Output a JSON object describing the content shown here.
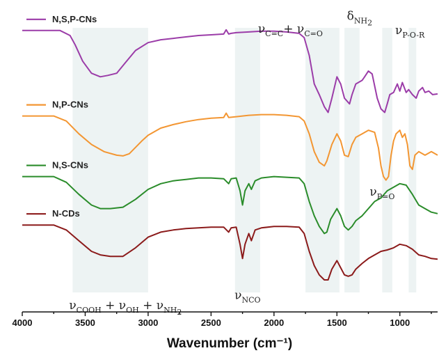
{
  "chart_data": {
    "type": "line",
    "title": "",
    "xlabel": "Wavenumber (cm⁻¹)",
    "ylabel": "",
    "xlim": [
      4000,
      700
    ],
    "x_reversed": true,
    "x_ticks": [
      4000,
      3500,
      3000,
      2500,
      2000,
      1500,
      1000
    ],
    "tick_labels": [
      "4000",
      "3500",
      "3000",
      "2500",
      "2000",
      "1500",
      "1000"
    ],
    "ylim": [
      0,
      4.3
    ],
    "grid": false,
    "series": [
      {
        "name": "N,S,P-CNs",
        "color": "#9b3ca8",
        "x": [
          4000,
          3700,
          3620,
          3580,
          3520,
          3450,
          3380,
          3320,
          3250,
          3180,
          3100,
          3000,
          2900,
          2800,
          2700,
          2600,
          2500,
          2400,
          2380,
          2360,
          2340,
          2300,
          2200,
          2100,
          2000,
          1900,
          1800,
          1760,
          1720,
          1680,
          1640,
          1600,
          1570,
          1540,
          1500,
          1470,
          1440,
          1400,
          1380,
          1350,
          1300,
          1280,
          1250,
          1220,
          1180,
          1150,
          1120,
          1100,
          1080,
          1050,
          1020,
          1000,
          980,
          950,
          930,
          900,
          870,
          850,
          820,
          800,
          770,
          740,
          700
        ],
        "y": [
          3.95,
          3.95,
          3.88,
          3.75,
          3.52,
          3.35,
          3.3,
          3.32,
          3.35,
          3.5,
          3.67,
          3.78,
          3.82,
          3.84,
          3.86,
          3.88,
          3.89,
          3.9,
          3.96,
          3.9,
          3.91,
          3.92,
          3.93,
          3.94,
          3.94,
          3.93,
          3.91,
          3.85,
          3.6,
          3.2,
          3.05,
          2.88,
          2.8,
          3.0,
          3.3,
          3.2,
          3.0,
          2.92,
          3.05,
          3.2,
          3.25,
          3.3,
          3.38,
          3.34,
          3.0,
          2.85,
          2.8,
          2.92,
          3.05,
          3.08,
          3.2,
          3.1,
          3.22,
          3.08,
          3.12,
          3.05,
          3.0,
          3.1,
          3.15,
          3.08,
          3.1,
          3.05,
          3.06
        ]
      },
      {
        "name": "N,P-CNs",
        "color": "#f39632",
        "x": [
          4000,
          3750,
          3650,
          3550,
          3450,
          3350,
          3250,
          3200,
          3150,
          3050,
          3000,
          2900,
          2800,
          2700,
          2600,
          2500,
          2400,
          2380,
          2360,
          2300,
          2200,
          2100,
          2000,
          1900,
          1800,
          1760,
          1720,
          1680,
          1640,
          1600,
          1580,
          1540,
          1500,
          1470,
          1440,
          1410,
          1380,
          1350,
          1300,
          1250,
          1200,
          1170,
          1150,
          1130,
          1110,
          1090,
          1070,
          1050,
          1030,
          1000,
          980,
          960,
          940,
          920,
          900,
          880,
          850,
          800,
          750,
          700
        ],
        "y": [
          2.75,
          2.75,
          2.68,
          2.5,
          2.35,
          2.25,
          2.2,
          2.19,
          2.22,
          2.4,
          2.48,
          2.58,
          2.63,
          2.67,
          2.7,
          2.72,
          2.73,
          2.79,
          2.73,
          2.74,
          2.76,
          2.77,
          2.77,
          2.76,
          2.74,
          2.68,
          2.5,
          2.25,
          2.1,
          2.05,
          2.12,
          2.35,
          2.5,
          2.4,
          2.2,
          2.18,
          2.35,
          2.45,
          2.5,
          2.55,
          2.52,
          2.3,
          2.05,
          1.9,
          1.85,
          1.9,
          2.2,
          2.4,
          2.5,
          2.55,
          2.45,
          2.5,
          2.35,
          2.05,
          2.0,
          2.2,
          2.25,
          2.2,
          2.25,
          2.2
        ]
      },
      {
        "name": "N,S-CNs",
        "color": "#2a8c2a",
        "x": [
          4000,
          3750,
          3650,
          3550,
          3450,
          3380,
          3300,
          3200,
          3100,
          3000,
          2900,
          2800,
          2700,
          2600,
          2500,
          2400,
          2360,
          2340,
          2300,
          2270,
          2250,
          2230,
          2200,
          2180,
          2150,
          2100,
          2000,
          1900,
          1800,
          1760,
          1720,
          1680,
          1640,
          1600,
          1580,
          1550,
          1500,
          1470,
          1440,
          1410,
          1380,
          1350,
          1300,
          1250,
          1200,
          1150,
          1100,
          1050,
          1000,
          950,
          900,
          850,
          800,
          750,
          700
        ],
        "y": [
          1.9,
          1.9,
          1.82,
          1.65,
          1.5,
          1.45,
          1.45,
          1.47,
          1.58,
          1.72,
          1.8,
          1.84,
          1.86,
          1.88,
          1.88,
          1.87,
          1.8,
          1.87,
          1.88,
          1.7,
          1.5,
          1.7,
          1.8,
          1.72,
          1.84,
          1.88,
          1.9,
          1.89,
          1.88,
          1.8,
          1.55,
          1.35,
          1.2,
          1.1,
          1.12,
          1.3,
          1.45,
          1.35,
          1.2,
          1.15,
          1.2,
          1.28,
          1.35,
          1.45,
          1.55,
          1.6,
          1.7,
          1.75,
          1.8,
          1.78,
          1.65,
          1.5,
          1.45,
          1.4,
          1.38
        ]
      },
      {
        "name": "N-CDs",
        "color": "#8b1a1a",
        "x": [
          4000,
          3750,
          3650,
          3550,
          3450,
          3380,
          3300,
          3200,
          3100,
          3000,
          2900,
          2800,
          2700,
          2600,
          2500,
          2400,
          2360,
          2340,
          2300,
          2270,
          2250,
          2230,
          2200,
          2180,
          2150,
          2100,
          2000,
          1900,
          1800,
          1760,
          1720,
          1680,
          1640,
          1600,
          1570,
          1540,
          1500,
          1470,
          1440,
          1410,
          1380,
          1350,
          1300,
          1250,
          1200,
          1150,
          1100,
          1050,
          1000,
          950,
          900,
          850,
          800,
          750,
          700
        ],
        "y": [
          1.22,
          1.22,
          1.15,
          1.0,
          0.85,
          0.8,
          0.78,
          0.78,
          0.9,
          1.05,
          1.12,
          1.15,
          1.17,
          1.18,
          1.19,
          1.19,
          1.12,
          1.18,
          1.19,
          0.95,
          0.75,
          0.95,
          1.1,
          1.0,
          1.15,
          1.18,
          1.2,
          1.2,
          1.19,
          1.1,
          0.85,
          0.65,
          0.52,
          0.45,
          0.45,
          0.6,
          0.72,
          0.62,
          0.52,
          0.5,
          0.52,
          0.6,
          0.68,
          0.75,
          0.8,
          0.85,
          0.87,
          0.9,
          0.95,
          0.93,
          0.88,
          0.8,
          0.78,
          0.75,
          0.74
        ]
      }
    ],
    "highlight_bands": [
      {
        "from": 3600,
        "to": 3000
      },
      {
        "from": 2310,
        "to": 2110
      },
      {
        "from": 1750,
        "to": 1480
      },
      {
        "from": 1440,
        "to": 1320
      },
      {
        "from": 1140,
        "to": 1060
      },
      {
        "from": 930,
        "to": 870
      }
    ],
    "annotations": {
      "cc_co": {
        "parts": [
          [
            "ν",
            ""
          ],
          [
            "C=C",
            "sub"
          ],
          [
            "+ ν",
            ""
          ],
          [
            "C=O",
            "sub"
          ]
        ],
        "x": 1870,
        "y": 3.92
      },
      "nh2_bend": {
        "parts": [
          [
            "δ",
            ""
          ],
          [
            "NH",
            "sub"
          ],
          [
            "2",
            "subsub"
          ]
        ],
        "x": 1320,
        "y": 4.1
      },
      "por": {
        "parts": [
          [
            "ν",
            ""
          ],
          [
            "P-O-R",
            "sub"
          ]
        ],
        "x": 920,
        "y": 3.9
      },
      "po": {
        "parts": [
          [
            "ν",
            ""
          ],
          [
            "P=O",
            "sub"
          ]
        ],
        "x": 1140,
        "y": 1.63
      },
      "nco": {
        "parts": [
          [
            "ν",
            ""
          ],
          [
            "NCO",
            "sub"
          ]
        ],
        "x": 2210,
        "y": 0.18
      },
      "cooh": {
        "parts": [
          [
            "ν",
            ""
          ],
          [
            "COOH",
            "sub"
          ],
          [
            " + ν",
            ""
          ],
          [
            "OH",
            "sub"
          ],
          [
            " + ν",
            ""
          ],
          [
            "NH",
            "sub"
          ],
          [
            "2",
            "subsub"
          ]
        ],
        "x": 3180,
        "y": 0.04
      }
    }
  }
}
